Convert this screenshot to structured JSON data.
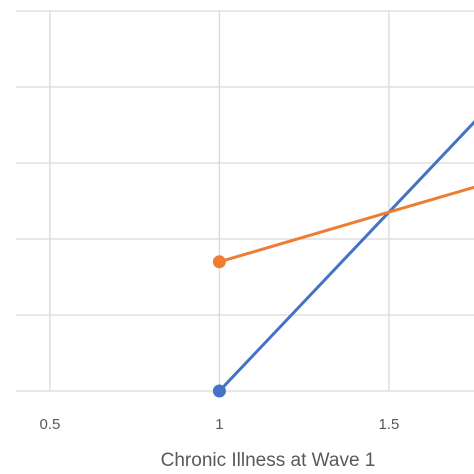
{
  "chart_data": {
    "type": "line",
    "xlabel": "Chronic Illness at Wave 1",
    "ylabel": "",
    "xlim": [
      0.4,
      1.85
    ],
    "ylim": [
      0,
      5
    ],
    "x_ticks": [
      {
        "value": 0.5,
        "label": "0.5"
      },
      {
        "value": 1,
        "label": "1"
      },
      {
        "value": 1.5,
        "label": "1.5"
      }
    ],
    "y_gridlines": [
      0,
      1,
      2,
      3,
      4,
      5
    ],
    "grid": true,
    "legend": "none",
    "series": [
      {
        "color": "#4472C4",
        "points": [
          {
            "x": 1,
            "y": 0
          },
          {
            "x": 1.85,
            "y": 4
          }
        ],
        "marker_at_first_point": true
      },
      {
        "color": "#ED7D31",
        "points": [
          {
            "x": 1,
            "y": 1.7
          },
          {
            "x": 1.85,
            "y": 2.81
          }
        ],
        "marker_at_first_point": true
      }
    ]
  }
}
